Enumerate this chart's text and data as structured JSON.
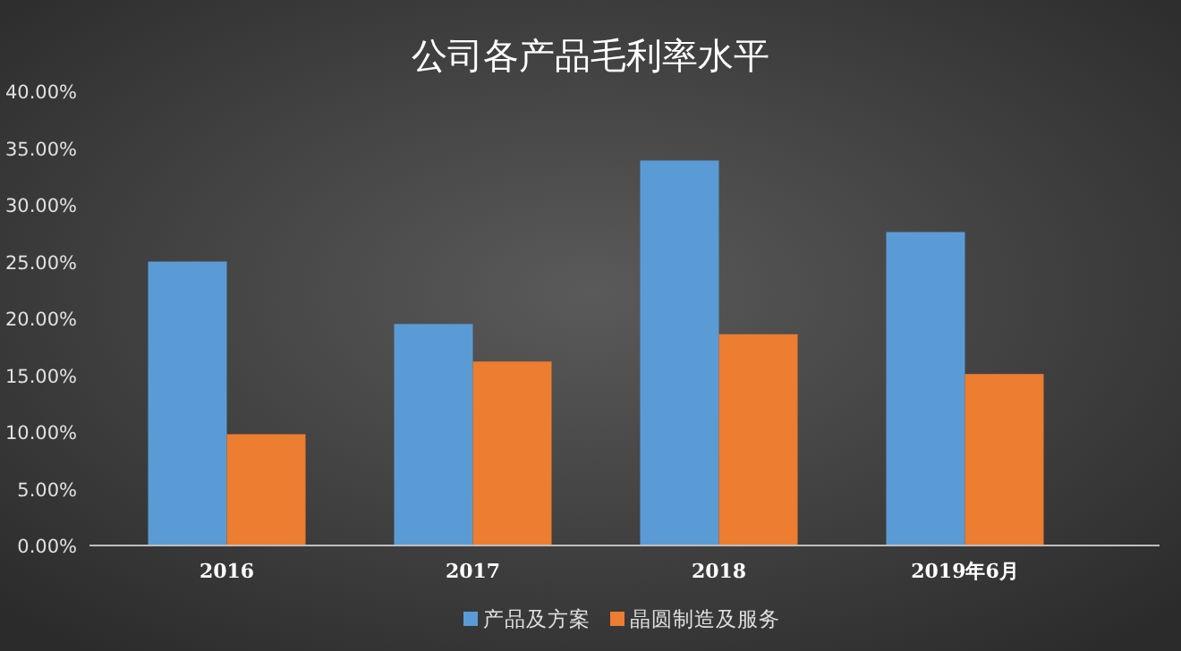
{
  "chart_data": {
    "type": "bar",
    "title": "公司各产品毛利率水平",
    "categories": [
      "2016",
      "2017",
      "2018",
      "2019年6月"
    ],
    "series": [
      {
        "name": "产品及方案",
        "color": "#5b9bd5",
        "values": [
          25.0,
          19.5,
          33.9,
          27.6
        ]
      },
      {
        "name": "晶圆制造及服务",
        "color": "#ed7d31",
        "values": [
          9.8,
          16.2,
          18.6,
          15.1
        ]
      }
    ],
    "ylim": [
      0,
      40
    ],
    "yticks": [
      {
        "value": 0,
        "label": "0.00%"
      },
      {
        "value": 5,
        "label": "5.00%"
      },
      {
        "value": 10,
        "label": "10.00%"
      },
      {
        "value": 15,
        "label": "15.00%"
      },
      {
        "value": 20,
        "label": "20.00%"
      },
      {
        "value": 25,
        "label": "25.00%"
      },
      {
        "value": 30,
        "label": "30.00%"
      },
      {
        "value": 35,
        "label": "35.00%"
      },
      {
        "value": 40,
        "label": "40.00%"
      }
    ],
    "legend": "bottom"
  }
}
